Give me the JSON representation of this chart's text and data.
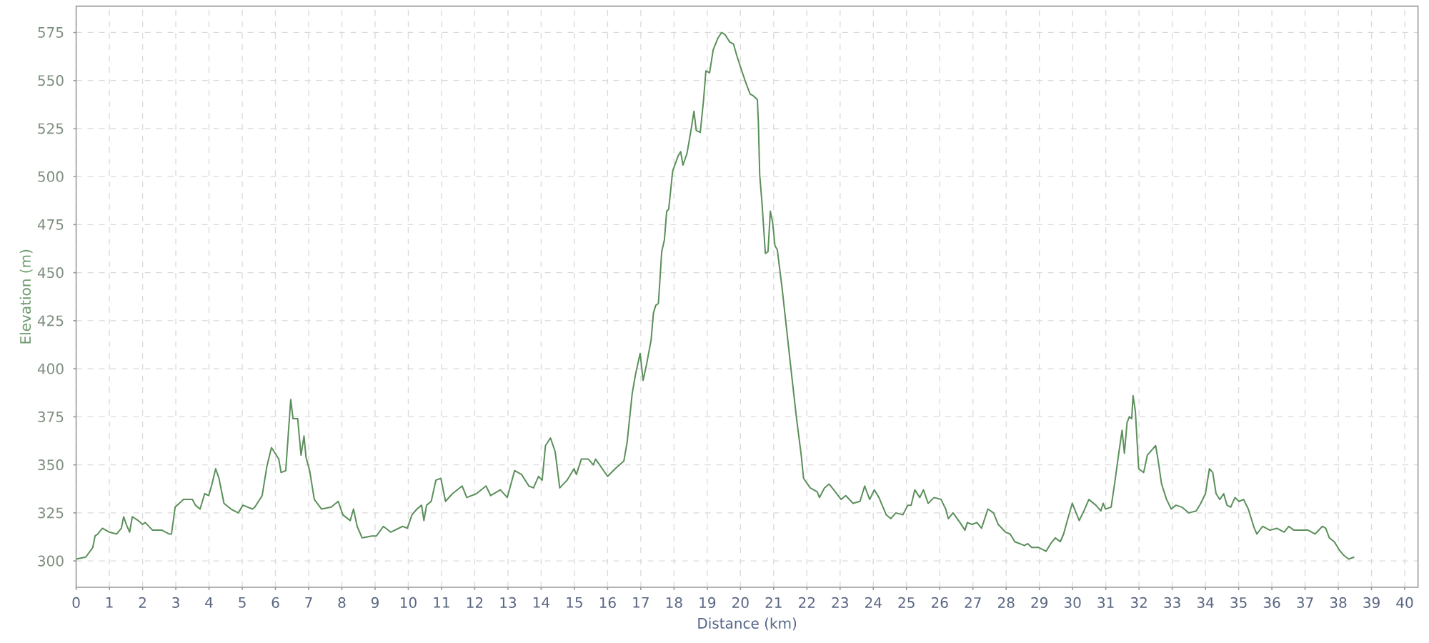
{
  "chart_data": {
    "type": "line",
    "xlabel": "Distance (km)",
    "ylabel": "Elevation (m)",
    "x": [
      0,
      0.29,
      0.5,
      0.57,
      0.65,
      0.79,
      1.0,
      1.22,
      1.36,
      1.43,
      1.51,
      1.61,
      1.69,
      1.87,
      2.0,
      2.08,
      2.3,
      2.58,
      2.8,
      2.87,
      2.98,
      3.23,
      3.5,
      3.59,
      3.73,
      3.87,
      3.99,
      4.09,
      4.2,
      4.3,
      4.45,
      4.66,
      4.88,
      5.02,
      5.31,
      5.38,
      5.6,
      5.74,
      5.88,
      6.1,
      6.17,
      6.31,
      6.46,
      6.53,
      6.67,
      6.77,
      6.86,
      6.92,
      7.03,
      7.17,
      7.39,
      7.68,
      7.89,
      8.03,
      8.25,
      8.35,
      8.46,
      8.61,
      8.9,
      9.04,
      9.25,
      9.47,
      9.83,
      9.97,
      10.11,
      10.26,
      10.4,
      10.47,
      10.55,
      10.69,
      10.83,
      10.98,
      11.12,
      11.33,
      11.62,
      11.76,
      12.05,
      12.34,
      12.48,
      12.77,
      12.98,
      13.2,
      13.41,
      13.63,
      13.77,
      13.92,
      14.03,
      14.13,
      14.28,
      14.42,
      14.56,
      14.78,
      14.99,
      15.06,
      15.21,
      15.42,
      15.57,
      15.64,
      16.0,
      16.23,
      16.49,
      16.59,
      16.74,
      16.84,
      16.98,
      17.07,
      17.17,
      17.31,
      17.38,
      17.45,
      17.53,
      17.63,
      17.71,
      17.78,
      17.84,
      17.96,
      18.13,
      18.2,
      18.27,
      18.39,
      18.5,
      18.6,
      18.67,
      18.79,
      18.89,
      18.96,
      19.07,
      19.18,
      19.32,
      19.43,
      19.53,
      19.68,
      19.79,
      19.89,
      20.04,
      20.18,
      20.29,
      20.39,
      20.51,
      20.54,
      20.58,
      20.65,
      20.75,
      20.83,
      20.9,
      20.97,
      21.04,
      21.11,
      21.26,
      21.4,
      21.54,
      21.69,
      21.83,
      21.9,
      22.1,
      22.31,
      22.38,
      22.53,
      22.67,
      22.81,
      23.03,
      23.17,
      23.39,
      23.6,
      23.74,
      23.89,
      24.03,
      24.17,
      24.39,
      24.53,
      24.68,
      24.89,
      25.04,
      25.14,
      25.25,
      25.4,
      25.51,
      25.65,
      25.83,
      26.04,
      26.18,
      26.26,
      26.4,
      26.61,
      26.76,
      26.83,
      26.97,
      27.12,
      27.26,
      27.45,
      27.62,
      27.76,
      27.98,
      28.12,
      28.26,
      28.41,
      28.55,
      28.65,
      28.77,
      28.98,
      29.2,
      29.34,
      29.48,
      29.63,
      29.73,
      29.84,
      29.99,
      30.2,
      30.34,
      30.49,
      30.7,
      30.85,
      30.92,
      30.99,
      31.16,
      31.28,
      31.39,
      31.49,
      31.56,
      31.64,
      31.71,
      31.78,
      31.82,
      31.89,
      31.99,
      32.14,
      32.25,
      32.4,
      32.5,
      32.57,
      32.68,
      32.83,
      32.97,
      33.11,
      33.29,
      33.5,
      33.72,
      33.86,
      34.0,
      34.12,
      34.22,
      34.32,
      34.43,
      34.55,
      34.65,
      34.76,
      34.89,
      35.01,
      35.15,
      35.29,
      35.47,
      35.55,
      35.72,
      35.94,
      36.15,
      36.37,
      36.51,
      36.66,
      36.87,
      37.09,
      37.3,
      37.52,
      37.62,
      37.73,
      37.88,
      38.02,
      38.16,
      38.31,
      38.48
    ],
    "series": [
      {
        "color": "#5b8f5b",
        "values": [
          301,
          302,
          307,
          313,
          314,
          317,
          315,
          314,
          317,
          323,
          319,
          315,
          323,
          321,
          319,
          320,
          316,
          316,
          314,
          314,
          328,
          332,
          332,
          329,
          327,
          335,
          334,
          340,
          348,
          343,
          330,
          327,
          325,
          329,
          327,
          328,
          334,
          349,
          359,
          353,
          346,
          347,
          384,
          374,
          374,
          355,
          365,
          354,
          347,
          332,
          327,
          328,
          331,
          324,
          321,
          327,
          318,
          312,
          313,
          313,
          318,
          315,
          318,
          317,
          324,
          327,
          329,
          321,
          329,
          331,
          342,
          343,
          331,
          335,
          339,
          333,
          335,
          339,
          334,
          337,
          333,
          347,
          345,
          339,
          338,
          344,
          342,
          360,
          364,
          357,
          338,
          342,
          348,
          345,
          353,
          353,
          350,
          353,
          344,
          348,
          352,
          362,
          387,
          397,
          408,
          394,
          402,
          415,
          429,
          433,
          434,
          461,
          467,
          482,
          483,
          503,
          511,
          513,
          506,
          512,
          523,
          534,
          524,
          523,
          540,
          555,
          554,
          566,
          572,
          575,
          574,
          570,
          569,
          563,
          555,
          548,
          543,
          542,
          540,
          528,
          501,
          486,
          460,
          461,
          482,
          476,
          464,
          462,
          441,
          419,
          397,
          374,
          355,
          343,
          338,
          336,
          333,
          338,
          340,
          337,
          332,
          334,
          330,
          331,
          339,
          332,
          337,
          333,
          324,
          322,
          325,
          324,
          329,
          329,
          337,
          333,
          337,
          330,
          333,
          332,
          327,
          322,
          325,
          320,
          316,
          320,
          319,
          320,
          317,
          327,
          325,
          319,
          315,
          314,
          310,
          309,
          308,
          309,
          307,
          307,
          305,
          309,
          312,
          310,
          314,
          321,
          330,
          321,
          326,
          332,
          329,
          326,
          330,
          327,
          328,
          342,
          356,
          368,
          356,
          372,
          375,
          374,
          386,
          378,
          348,
          346,
          355,
          358,
          360,
          353,
          340,
          332,
          327,
          329,
          328,
          325,
          326,
          330,
          335,
          348,
          346,
          335,
          332,
          335,
          329,
          328,
          333,
          331,
          332,
          327,
          317,
          314,
          318,
          316,
          317,
          315,
          318,
          316,
          316,
          316,
          314,
          318,
          317,
          312,
          310,
          306,
          303,
          301,
          302
        ]
      }
    ],
    "xlim": [
      0,
      40.4
    ],
    "ylim": [
      286.3,
      588.7
    ],
    "xticks": [
      0,
      1,
      2,
      3,
      4,
      5,
      6,
      7,
      8,
      9,
      10,
      11,
      12,
      13,
      14,
      15,
      16,
      17,
      18,
      19,
      20,
      21,
      22,
      23,
      24,
      25,
      26,
      27,
      28,
      29,
      30,
      31,
      32,
      33,
      34,
      35,
      36,
      37,
      38,
      39,
      40
    ],
    "yticks": [
      300,
      325,
      350,
      375,
      400,
      425,
      450,
      475,
      500,
      525,
      550,
      575
    ],
    "grid": true,
    "marker": "none",
    "line_style": "solid"
  }
}
